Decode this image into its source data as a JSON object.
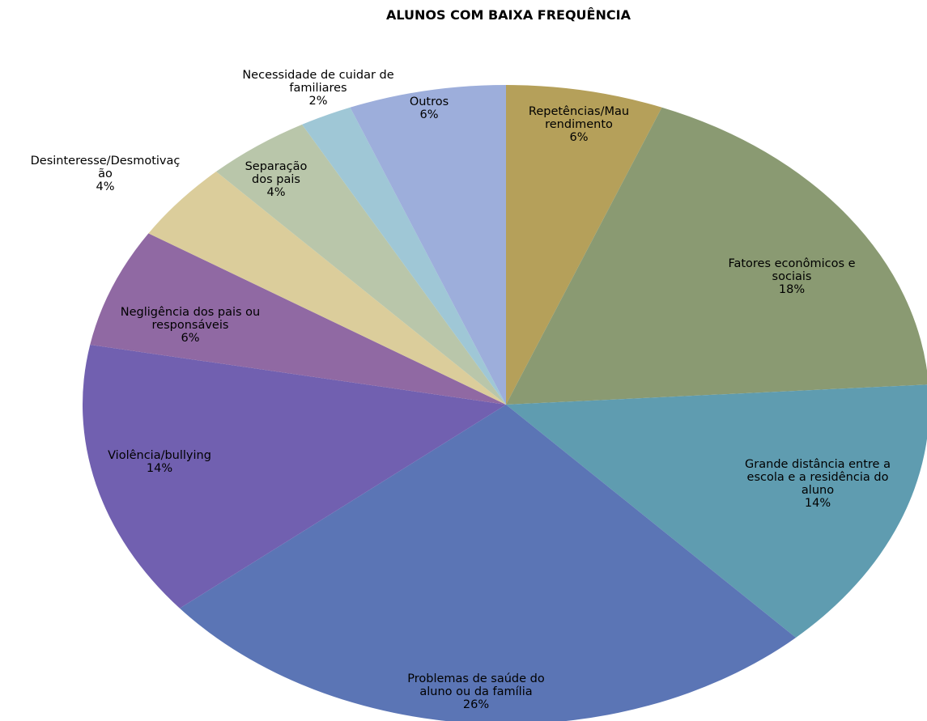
{
  "chart_data": {
    "type": "pie",
    "title": "ALUNOS COM BAIXA FREQUÊNCIA",
    "categories": [
      "Repetências/Mau rendimento",
      "Fatores econômicos e sociais",
      "Grande distância entre a escola e a residência do aluno",
      "Problemas de saúde do aluno ou da família",
      "Violência/bullying",
      "Negligência dos pais ou responsáveis",
      "Desinteresse/Desmotivação",
      "Separação dos pais",
      "Necessidade de cuidar de familiares",
      "Outros"
    ],
    "values": [
      6,
      18,
      14,
      26,
      14,
      6,
      4,
      4,
      2,
      6
    ],
    "value_labels": [
      "6%",
      "18%",
      "14%",
      "26%",
      "14%",
      "6%",
      "4%",
      "4%",
      "2%",
      "6%"
    ],
    "colors": [
      "#b5a05a",
      "#8a9a72",
      "#5f9cb0",
      "#5b75b5",
      "#7160b0",
      "#9069a3",
      "#dbcd9b",
      "#b9c6aa",
      "#9fc7d6",
      "#9daedb"
    ]
  }
}
